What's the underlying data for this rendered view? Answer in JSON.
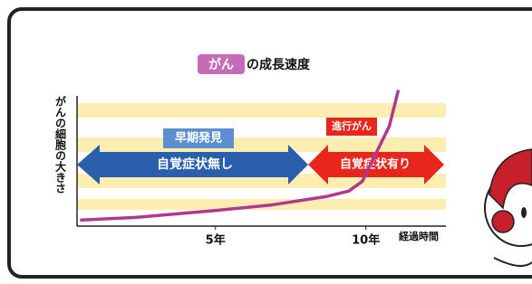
{
  "chart_data": {
    "type": "line",
    "title_highlight": "がん",
    "title": "の成長速度",
    "ylabel": "がんの細胞の大きさ",
    "xlabel": "経過時間",
    "x": [
      0.5,
      2.35,
      5,
      6.87,
      8.67,
      9.43,
      9.88,
      10.33,
      10.78,
      11.08
    ],
    "values": [
      3,
      5,
      10,
      14,
      20,
      24,
      31,
      51,
      71,
      97
    ],
    "color": "#b0388e",
    "xlim": [
      0.4,
      12.6
    ],
    "ylim": [
      0,
      100
    ],
    "xticks": [
      {
        "value": 5,
        "label": "5年"
      },
      {
        "value": 10,
        "label": "10年"
      }
    ],
    "annotations": {
      "early_detection": "早期発見",
      "no_symptoms": "自覚症状無し",
      "advanced": "進行がん",
      "symptoms": "自覚症状有り"
    }
  }
}
